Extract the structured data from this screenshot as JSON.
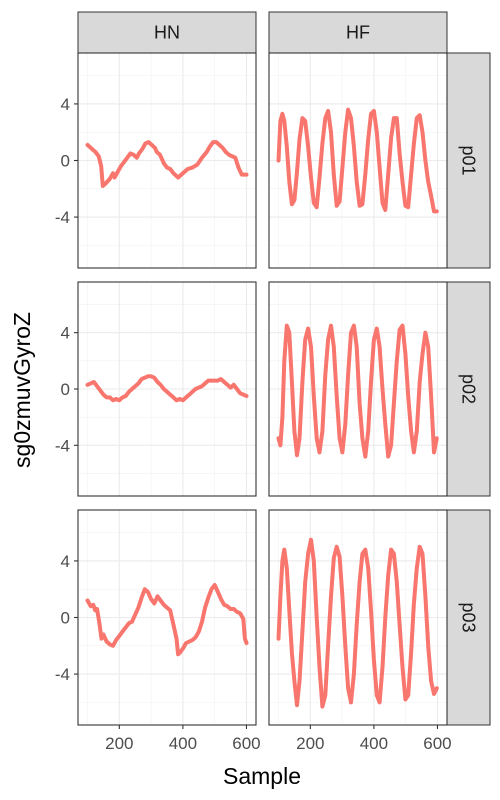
{
  "chart_data": {
    "type": "line",
    "xlabel": "Sample",
    "ylabel": "sg0zmuvGyroZ",
    "columns": [
      "HN",
      "HF"
    ],
    "rows": [
      "p01",
      "p02",
      "p03"
    ],
    "xlim": [
      70,
      630
    ],
    "ylim": [
      -7.6,
      7.6
    ],
    "x_ticks": [
      200,
      400,
      600
    ],
    "y_ticks": [
      4,
      0,
      -4
    ],
    "x_tick_labels": [
      "200",
      "400",
      "600"
    ],
    "y_tick_labels": [
      "4",
      "0",
      "-4"
    ],
    "grid": true,
    "line_color": "#F8766D",
    "panels": [
      {
        "row": "p01",
        "col": "HN",
        "x": [
          100,
          115,
          125,
          135,
          143,
          148,
          158,
          170,
          180,
          185,
          195,
          205,
          215,
          225,
          235,
          245,
          255,
          262,
          272,
          282,
          292,
          302,
          312,
          318,
          328,
          340,
          350,
          360,
          370,
          385,
          400,
          415,
          430,
          445,
          460,
          475,
          485,
          495,
          505,
          515,
          525,
          535,
          545,
          555,
          565,
          575,
          585,
          595,
          600
        ],
        "y": [
          1.1,
          0.8,
          0.6,
          0.3,
          -0.4,
          -1.8,
          -1.6,
          -1.3,
          -0.9,
          -1.2,
          -0.8,
          -0.4,
          -0.1,
          0.2,
          0.5,
          0.4,
          0.2,
          0.5,
          0.8,
          1.2,
          1.3,
          1.1,
          0.9,
          0.6,
          0.4,
          -0.2,
          -0.5,
          -0.6,
          -0.9,
          -1.2,
          -0.9,
          -0.6,
          -0.5,
          -0.3,
          0.2,
          0.6,
          1.0,
          1.3,
          1.3,
          1.1,
          0.9,
          0.6,
          0.4,
          0.3,
          0.2,
          -0.5,
          -1.0,
          -1.0,
          -1.0
        ]
      },
      {
        "row": "p01",
        "col": "HF",
        "x": [
          100,
          106,
          112,
          118,
          126,
          134,
          142,
          150,
          158,
          166,
          175,
          184,
          193,
          202,
          211,
          220,
          229,
          238,
          247,
          256,
          265,
          274,
          283,
          292,
          301,
          310,
          319,
          328,
          337,
          346,
          355,
          364,
          373,
          382,
          391,
          400,
          409,
          418,
          427,
          436,
          445,
          454,
          463,
          472,
          481,
          490,
          499,
          508,
          517,
          526,
          535,
          544,
          553,
          562,
          571,
          580,
          589,
          598
        ],
        "y": [
          0.0,
          2.8,
          3.3,
          2.8,
          1.0,
          -1.5,
          -3.1,
          -2.8,
          -0.8,
          1.5,
          3.0,
          2.8,
          1.0,
          -1.2,
          -3.0,
          -3.3,
          -1.2,
          1.2,
          3.0,
          3.5,
          2.0,
          -1.0,
          -3.2,
          -2.9,
          -0.5,
          2.0,
          3.6,
          3.0,
          1.0,
          -1.5,
          -3.2,
          -3.1,
          -1.0,
          1.5,
          3.3,
          3.5,
          2.0,
          -0.5,
          -3.0,
          -3.5,
          -1.0,
          1.6,
          3.0,
          3.0,
          0.5,
          -1.5,
          -3.2,
          -3.3,
          -1.0,
          1.2,
          3.0,
          3.2,
          2.0,
          0.0,
          -1.5,
          -2.5,
          -3.6,
          -3.6
        ]
      },
      {
        "row": "p02",
        "col": "HN",
        "x": [
          100,
          110,
          120,
          130,
          140,
          150,
          160,
          170,
          180,
          190,
          200,
          210,
          220,
          230,
          240,
          250,
          260,
          270,
          280,
          290,
          300,
          310,
          320,
          330,
          340,
          350,
          360,
          370,
          380,
          390,
          400,
          410,
          420,
          430,
          440,
          450,
          460,
          470,
          480,
          490,
          500,
          510,
          520,
          530,
          540,
          550,
          560,
          570,
          580,
          590,
          600
        ],
        "y": [
          0.3,
          0.4,
          0.5,
          0.2,
          -0.1,
          -0.4,
          -0.6,
          -0.6,
          -0.8,
          -0.7,
          -0.8,
          -0.6,
          -0.5,
          -0.2,
          0.0,
          0.2,
          0.4,
          0.7,
          0.8,
          0.9,
          0.9,
          0.8,
          0.5,
          0.3,
          0.0,
          -0.2,
          -0.4,
          -0.6,
          -0.8,
          -0.7,
          -0.8,
          -0.6,
          -0.4,
          -0.2,
          0.0,
          0.1,
          0.2,
          0.4,
          0.6,
          0.6,
          0.6,
          0.6,
          0.7,
          0.5,
          0.3,
          0.1,
          0.3,
          0.0,
          -0.3,
          -0.4,
          -0.5
        ]
      },
      {
        "row": "p02",
        "col": "HF",
        "x": [
          100,
          106,
          112,
          118,
          126,
          134,
          142,
          150,
          158,
          166,
          175,
          184,
          193,
          202,
          211,
          220,
          229,
          238,
          247,
          256,
          265,
          274,
          283,
          292,
          301,
          310,
          319,
          328,
          337,
          346,
          355,
          364,
          373,
          382,
          391,
          400,
          409,
          418,
          427,
          436,
          445,
          454,
          463,
          472,
          481,
          490,
          499,
          508,
          517,
          526,
          535,
          544,
          553,
          562,
          571,
          580,
          589,
          598
        ],
        "y": [
          -3.5,
          -4.0,
          -2.0,
          2.0,
          4.5,
          4.0,
          0.5,
          -3.0,
          -4.7,
          -3.5,
          0.5,
          3.5,
          4.3,
          3.0,
          -0.5,
          -3.5,
          -4.5,
          -3.0,
          1.0,
          3.5,
          4.5,
          3.0,
          -0.5,
          -3.5,
          -4.5,
          -2.5,
          1.0,
          4.0,
          4.5,
          3.0,
          -1.0,
          -3.5,
          -4.8,
          -3.0,
          0.5,
          3.5,
          4.3,
          3.0,
          0.0,
          -2.5,
          -4.8,
          -4.0,
          -1.0,
          2.0,
          4.2,
          4.5,
          2.5,
          -0.5,
          -3.0,
          -4.5,
          -3.0,
          0.5,
          2.5,
          4.0,
          3.0,
          -0.5,
          -4.5,
          -3.5
        ]
      },
      {
        "row": "p03",
        "col": "HN",
        "x": [
          100,
          110,
          118,
          124,
          130,
          138,
          144,
          150,
          160,
          170,
          180,
          190,
          200,
          210,
          220,
          230,
          240,
          250,
          260,
          270,
          280,
          290,
          300,
          310,
          320,
          330,
          340,
          350,
          360,
          370,
          380,
          385,
          390,
          400,
          410,
          420,
          430,
          440,
          450,
          460,
          470,
          480,
          490,
          500,
          510,
          520,
          530,
          540,
          550,
          560,
          570,
          580,
          590,
          595,
          600
        ],
        "y": [
          1.2,
          0.8,
          0.9,
          0.5,
          0.6,
          -0.5,
          -1.5,
          -1.2,
          -1.7,
          -1.9,
          -2.0,
          -1.6,
          -1.3,
          -1.0,
          -0.7,
          -0.4,
          -0.3,
          0.2,
          0.7,
          1.4,
          2.0,
          1.8,
          1.3,
          1.0,
          1.5,
          1.2,
          0.9,
          0.7,
          0.5,
          -0.5,
          -1.5,
          -2.6,
          -2.5,
          -2.2,
          -1.8,
          -1.7,
          -1.6,
          -1.4,
          -1.0,
          -0.3,
          0.7,
          1.4,
          2.0,
          2.3,
          1.8,
          1.3,
          0.9,
          0.8,
          0.6,
          0.6,
          0.4,
          0.3,
          -0.1,
          -1.5,
          -1.8
        ]
      },
      {
        "row": "p03",
        "col": "HF",
        "x": [
          100,
          106,
          112,
          118,
          126,
          134,
          142,
          150,
          158,
          166,
          175,
          184,
          193,
          202,
          211,
          220,
          229,
          238,
          247,
          256,
          265,
          274,
          283,
          292,
          301,
          310,
          319,
          328,
          337,
          346,
          355,
          364,
          373,
          382,
          391,
          400,
          409,
          418,
          427,
          436,
          445,
          454,
          463,
          472,
          481,
          490,
          499,
          508,
          517,
          526,
          535,
          544,
          553,
          562,
          571,
          580,
          589,
          598
        ],
        "y": [
          -1.5,
          1.5,
          4.0,
          4.8,
          3.5,
          0.5,
          -2.5,
          -4.5,
          -6.2,
          -4.5,
          -1.0,
          2.5,
          4.5,
          5.5,
          4.0,
          0.0,
          -3.5,
          -6.3,
          -5.5,
          -2.0,
          1.5,
          4.2,
          5.0,
          4.3,
          1.5,
          -2.0,
          -5.0,
          -6.0,
          -4.0,
          -0.5,
          2.5,
          4.5,
          4.8,
          3.5,
          0.5,
          -3.0,
          -5.5,
          -6.0,
          -3.5,
          0.0,
          3.0,
          4.8,
          4.5,
          2.5,
          -0.5,
          -3.5,
          -5.8,
          -5.5,
          -2.5,
          1.0,
          3.5,
          5.0,
          4.5,
          1.5,
          -2.0,
          -4.5,
          -5.4,
          -5.0
        ]
      }
    ]
  }
}
